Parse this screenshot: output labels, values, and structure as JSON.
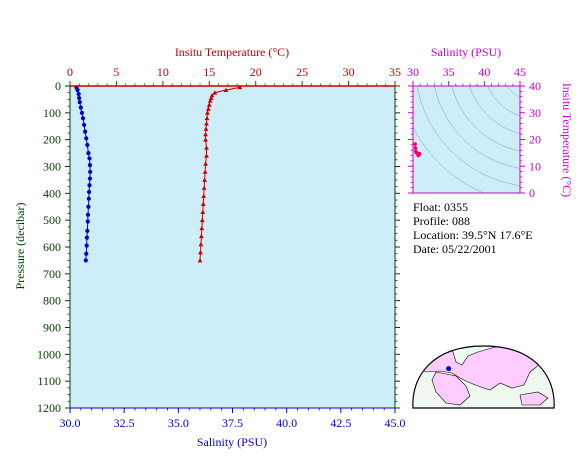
{
  "colors": {
    "temperature": "#cc0000",
    "salinity_main": "#0000cc",
    "pressure_axis": "#004400",
    "inset_axis": "#cc00cc",
    "plot_bg": "#cdeef8",
    "map_land": "#ffccff",
    "map_other": "#eef8ee"
  },
  "chart_data": [
    {
      "type": "scatter",
      "panel": "profile",
      "top_axis": {
        "label": "Insitu Temperature (°C)",
        "range": [
          0,
          35
        ],
        "ticks": [
          "0",
          "5",
          "10",
          "15",
          "20",
          "25",
          "30",
          "35"
        ]
      },
      "bottom_axis": {
        "label": "Salinity (PSU)",
        "range": [
          30.0,
          45.0
        ],
        "ticks": [
          "30.0",
          "32.5",
          "35.0",
          "37.5",
          "40.0",
          "42.5",
          "45.0"
        ]
      },
      "left_axis": {
        "label": "Pressure (decibar)",
        "range": [
          0,
          1200
        ],
        "inverted": true,
        "ticks": [
          "0",
          "100",
          "200",
          "300",
          "400",
          "500",
          "600",
          "700",
          "800",
          "900",
          "1000",
          "1100",
          "1200"
        ]
      },
      "series": [
        {
          "variable": "temperature",
          "marker": "triangle",
          "color": "#cc0000",
          "points": [
            [
              18.3,
              5
            ],
            [
              16.8,
              15
            ],
            [
              15.6,
              25
            ],
            [
              15.3,
              35
            ],
            [
              15.2,
              45
            ],
            [
              15.1,
              55
            ],
            [
              15.0,
              70
            ],
            [
              14.9,
              85
            ],
            [
              14.8,
              100
            ],
            [
              14.75,
              120
            ],
            [
              14.7,
              140
            ],
            [
              14.65,
              160
            ],
            [
              14.6,
              180
            ],
            [
              14.6,
              200
            ],
            [
              14.7,
              230
            ],
            [
              14.7,
              260
            ],
            [
              14.6,
              290
            ],
            [
              14.55,
              320
            ],
            [
              14.5,
              350
            ],
            [
              14.45,
              380
            ],
            [
              14.4,
              410
            ],
            [
              14.35,
              440
            ],
            [
              14.3,
              470
            ],
            [
              14.25,
              500
            ],
            [
              14.2,
              530
            ],
            [
              14.15,
              560
            ],
            [
              14.1,
              590
            ],
            [
              14.05,
              620
            ],
            [
              14.0,
              650
            ]
          ]
        },
        {
          "variable": "salinity",
          "marker": "circle",
          "color": "#0000cc",
          "points": [
            [
              30.3,
              5
            ],
            [
              30.35,
              15
            ],
            [
              30.4,
              30
            ],
            [
              30.42,
              45
            ],
            [
              30.45,
              60
            ],
            [
              30.5,
              80
            ],
            [
              30.55,
              100
            ],
            [
              30.6,
              120
            ],
            [
              30.65,
              145
            ],
            [
              30.7,
              170
            ],
            [
              30.75,
              195
            ],
            [
              30.8,
              220
            ],
            [
              30.85,
              250
            ],
            [
              30.9,
              270
            ],
            [
              30.92,
              295
            ],
            [
              30.93,
              320
            ],
            [
              30.92,
              345
            ],
            [
              30.9,
              370
            ],
            [
              30.88,
              395
            ],
            [
              30.87,
              420
            ],
            [
              30.85,
              450
            ],
            [
              30.83,
              480
            ],
            [
              30.82,
              505
            ],
            [
              30.8,
              540
            ],
            [
              30.78,
              565
            ],
            [
              30.77,
              595
            ],
            [
              30.75,
              625
            ],
            [
              30.73,
              650
            ]
          ]
        }
      ]
    },
    {
      "type": "scatter",
      "panel": "ts_diagram",
      "top_axis": {
        "label": "Salinity (PSU)",
        "range": [
          30,
          45
        ],
        "ticks": [
          "30",
          "35",
          "40",
          "45"
        ]
      },
      "right_axis": {
        "label": "Insitu Temperature (°C)",
        "range": [
          0,
          40
        ],
        "ticks": [
          "0",
          "10",
          "20",
          "30",
          "40"
        ]
      },
      "series": [
        {
          "variable": "ts",
          "color": "#ff0066",
          "points": [
            [
              30.3,
              18.3
            ],
            [
              30.35,
              16.8
            ],
            [
              30.4,
              15.6
            ],
            [
              30.45,
              15.2
            ],
            [
              30.5,
              15.0
            ],
            [
              30.6,
              14.8
            ],
            [
              30.7,
              14.7
            ],
            [
              30.8,
              14.6
            ],
            [
              30.9,
              14.7
            ],
            [
              30.92,
              14.6
            ],
            [
              30.9,
              14.5
            ],
            [
              30.85,
              14.4
            ],
            [
              30.8,
              14.3
            ],
            [
              30.75,
              14.2
            ],
            [
              30.73,
              14.0
            ]
          ]
        }
      ]
    }
  ],
  "info": {
    "float": "Float:  0355",
    "profile": "Profile:  088",
    "location": "Location:  39.5°N  17.6°E",
    "date": "Date:  05/22/2001"
  },
  "map": {
    "float_position": {
      "lat": 39.5,
      "lon": 17.6
    }
  }
}
